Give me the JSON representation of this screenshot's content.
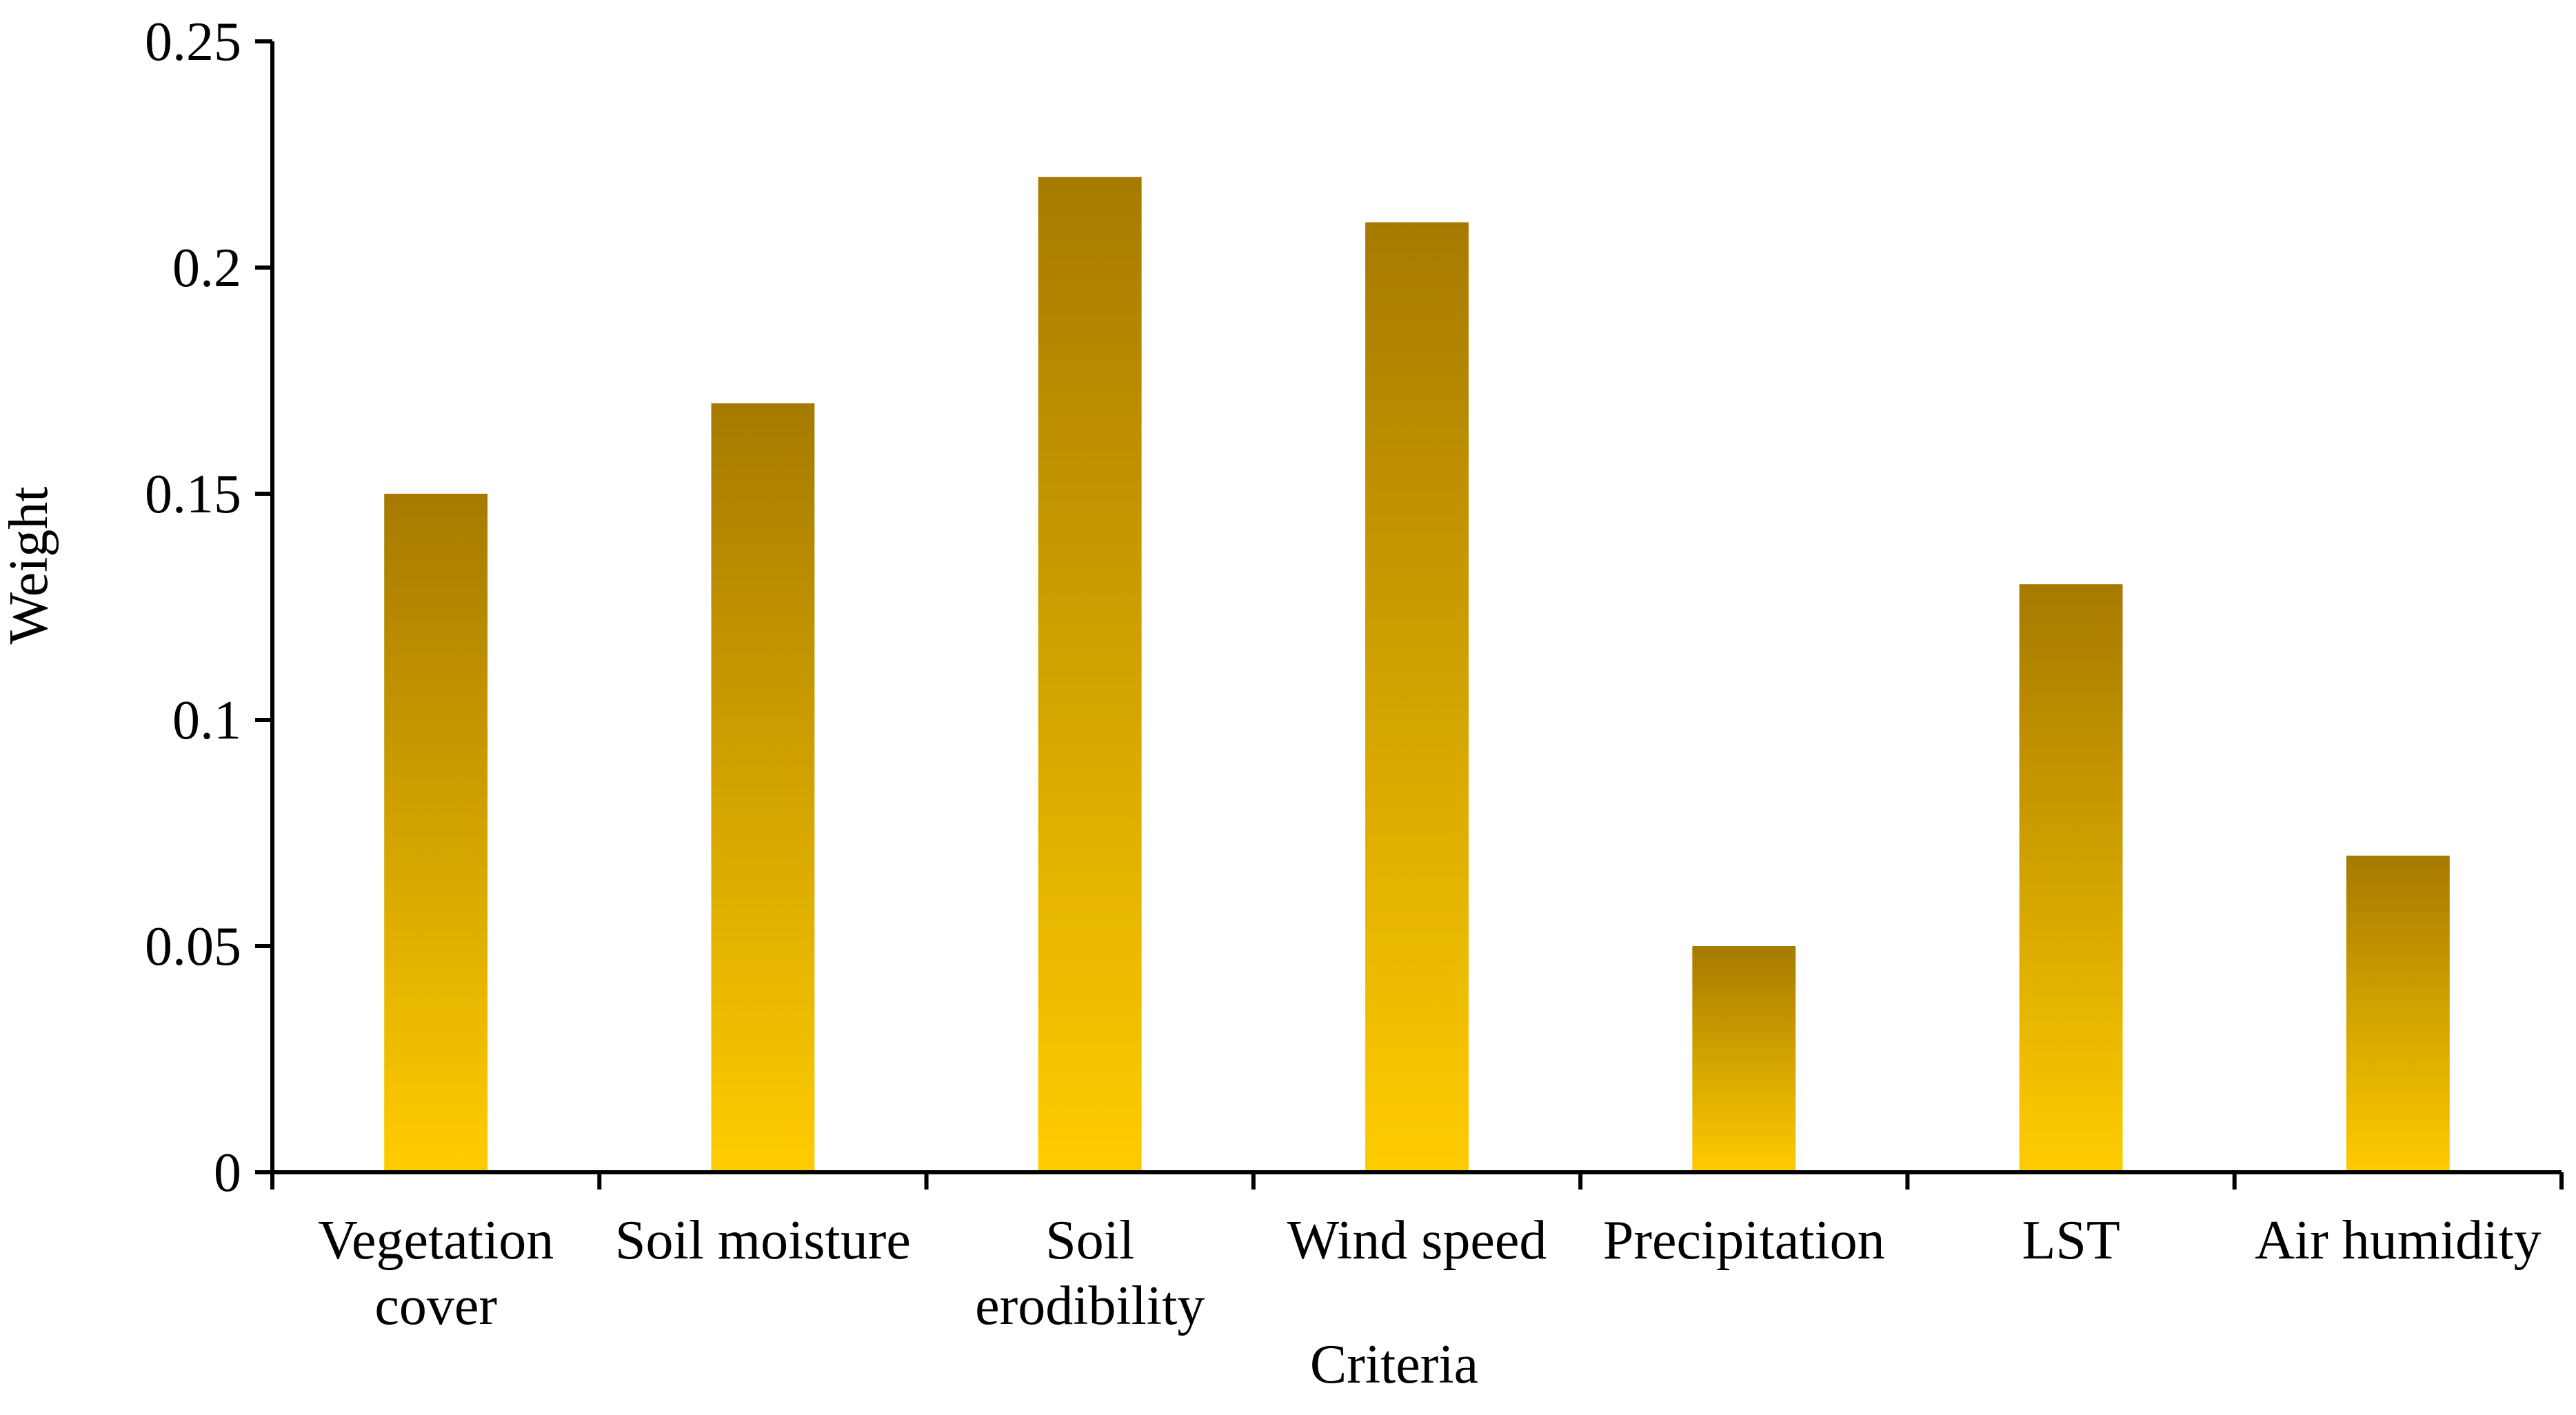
{
  "chart_data": {
    "type": "bar",
    "title": "",
    "xlabel": "Criteria",
    "ylabel": "Weight",
    "categories": [
      [
        "Vegetation",
        "cover"
      ],
      [
        "Soil moisture"
      ],
      [
        "Soil",
        "erodibility"
      ],
      [
        "Wind speed"
      ],
      [
        "Precipitation"
      ],
      [
        "LST"
      ],
      [
        "Air humidity"
      ]
    ],
    "values": [
      0.15,
      0.17,
      0.22,
      0.21,
      0.05,
      0.13,
      0.07
    ],
    "ylim": [
      0,
      0.25
    ],
    "yticks": [
      0,
      0.05,
      0.1,
      0.15,
      0.2,
      0.25
    ],
    "ytick_labels": [
      "0",
      "0.05",
      "0.1",
      "0.15",
      "0.2",
      "0.25"
    ],
    "grid": false,
    "legend": "none",
    "bar_gradient": {
      "top": "#A67A00",
      "bottom": "#FFCC00"
    },
    "axis_color": "#000000"
  }
}
